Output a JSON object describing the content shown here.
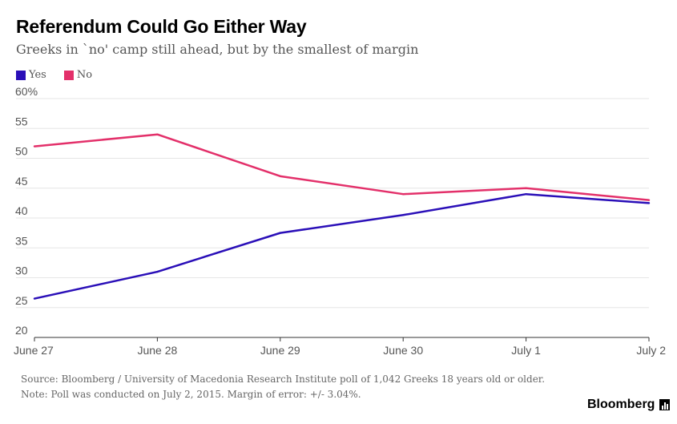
{
  "title": "Referendum Could Go Either Way",
  "subtitle": "Greeks in `no' camp still ahead, but by the smallest of margin",
  "source": "Source: Bloomberg / University of Macedonia Research Institute poll of 1,042 Greeks 18 years old or older.",
  "note": "Note: Poll was conducted on July 2, 2015. Margin of error: +/- 3.04%.",
  "brand": "Bloomberg",
  "colors": {
    "yes": "#2a0fb8",
    "no": "#e3306a",
    "grid": "#e6e6e6",
    "axis": "#333333"
  },
  "chart_data": {
    "type": "line",
    "x": [
      "June 27",
      "June 28",
      "June 29",
      "June 30",
      "July 1",
      "July 2"
    ],
    "ylim": [
      20,
      60
    ],
    "yticks": [
      20,
      25,
      30,
      35,
      40,
      45,
      50,
      55,
      60
    ],
    "ytick_labels": [
      "20",
      "25",
      "30",
      "35",
      "40",
      "45",
      "50",
      "55",
      "60%"
    ],
    "grid": true,
    "legend": "top-left",
    "series": [
      {
        "name": "Yes",
        "color": "#2a0fb8",
        "values": [
          26.5,
          31,
          37.5,
          40.5,
          44,
          42.5
        ]
      },
      {
        "name": "No",
        "color": "#e3306a",
        "values": [
          52,
          54,
          47,
          44,
          45,
          43
        ]
      }
    ]
  }
}
